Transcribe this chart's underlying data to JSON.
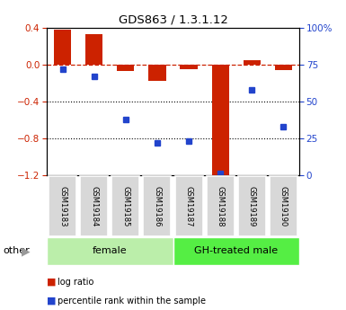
{
  "title": "GDS863 / 1.3.1.12",
  "samples": [
    "GSM19183",
    "GSM19184",
    "GSM19185",
    "GSM19186",
    "GSM19187",
    "GSM19188",
    "GSM19189",
    "GSM19190"
  ],
  "log_ratio": [
    0.38,
    0.33,
    -0.07,
    -0.18,
    -0.05,
    -1.25,
    0.05,
    -0.06
  ],
  "percentile_rank": [
    72,
    67,
    38,
    22,
    23,
    1,
    58,
    33
  ],
  "ylim": [
    -1.2,
    0.4
  ],
  "yticks_left": [
    -1.2,
    -0.8,
    -0.4,
    0.0,
    0.4
  ],
  "yticks_right": [
    0,
    25,
    50,
    75,
    100
  ],
  "bar_color": "#cc2200",
  "square_color": "#2244cc",
  "dashed_line_color": "#cc2200",
  "female_label": "female",
  "male_label": "GH-treated male",
  "female_color": "#bbeeaa",
  "male_color": "#55ee44",
  "bar_width": 0.55,
  "legend_red": "log ratio",
  "legend_blue": "percentile rank within the sample"
}
